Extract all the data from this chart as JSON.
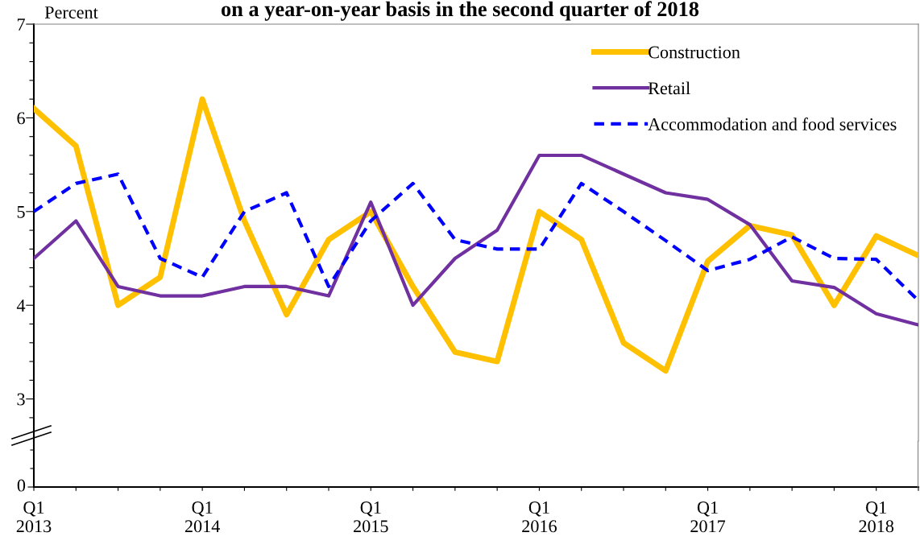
{
  "chart_data": {
    "type": "line",
    "title": "on a year-on-year basis in the second quarter of 2018",
    "ylabel": "Percent",
    "categories": [
      "Q1\n2013",
      null,
      null,
      null,
      "Q1\n2014",
      null,
      null,
      null,
      "Q1\n2015",
      null,
      null,
      null,
      "Q1\n2016",
      null,
      null,
      null,
      "Q1\n2017",
      null,
      null,
      null,
      "Q1\n2018",
      null
    ],
    "series": [
      {
        "name": "Construction",
        "color": "#ffc000",
        "line_style": "solid",
        "values": [
          6.1,
          5.7,
          4.0,
          4.3,
          6.2,
          4.9,
          3.9,
          4.7,
          5.0,
          4.2,
          3.5,
          3.4,
          5.0,
          4.7,
          3.6,
          3.3,
          4.47,
          4.85,
          4.75,
          4.0,
          4.74,
          4.53
        ]
      },
      {
        "name": "Retail",
        "color": "#7030a0",
        "line_style": "solid",
        "values": [
          4.5,
          4.9,
          4.2,
          4.1,
          4.1,
          4.2,
          4.2,
          4.1,
          5.1,
          4.0,
          4.5,
          4.8,
          5.6,
          5.6,
          5.4,
          5.2,
          5.13,
          4.86,
          4.26,
          4.19,
          3.91,
          3.79
        ]
      },
      {
        "name": "Accommodation and food services",
        "color": "#0000ff",
        "line_style": "dashed",
        "values": [
          5.0,
          5.3,
          5.4,
          4.5,
          4.3,
          5.0,
          5.2,
          4.2,
          4.9,
          5.3,
          4.7,
          4.6,
          4.6,
          5.3,
          5.0,
          4.69,
          4.37,
          4.49,
          4.73,
          4.5,
          4.49,
          4.05
        ]
      }
    ],
    "ylim": [
      2.55,
      7
    ],
    "yticks": [
      {
        "value": 2.8,
        "label": null
      },
      3,
      {
        "value": 3.2,
        "label": null
      },
      {
        "value": 3.4,
        "label": null
      },
      {
        "value": 3.6,
        "label": null
      },
      {
        "value": 3.8,
        "label": null
      },
      4,
      {
        "value": 4.2,
        "label": null
      },
      {
        "value": 4.4,
        "label": null
      },
      {
        "value": 4.6,
        "label": null
      },
      {
        "value": 4.8,
        "label": null
      },
      5,
      {
        "value": 5.2,
        "label": null
      },
      {
        "value": 5.4,
        "label": null
      },
      {
        "value": 5.6,
        "label": null
      },
      {
        "value": 5.8,
        "label": null
      },
      6,
      {
        "value": 6.2,
        "label": null
      },
      {
        "value": 6.4,
        "label": null
      },
      {
        "value": 6.6,
        "label": null
      },
      {
        "value": 6.8,
        "label": null
      },
      7
    ],
    "annotations": [
      "0"
    ],
    "grid": false,
    "legend": "top right",
    "marker": "none"
  }
}
